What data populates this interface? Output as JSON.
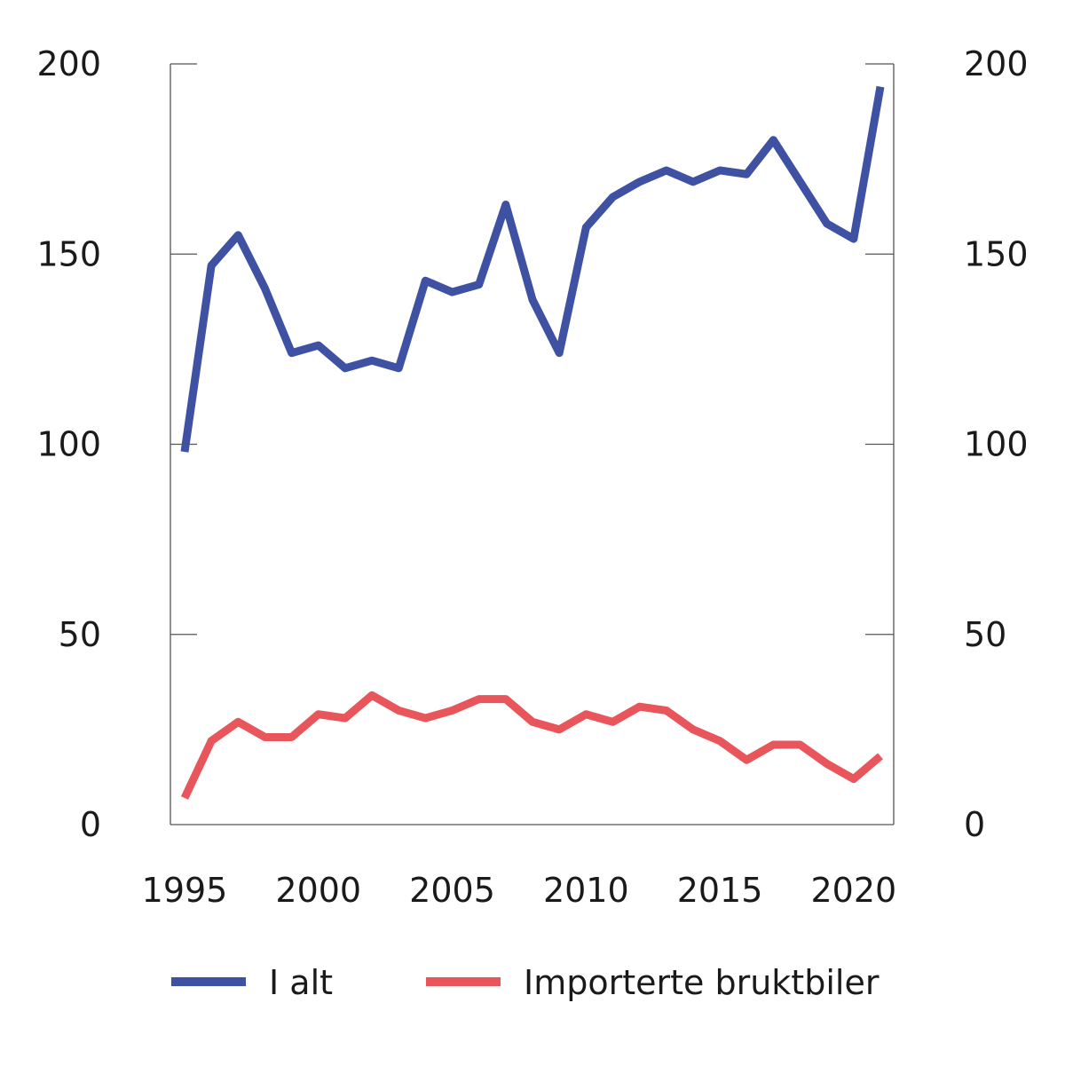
{
  "chart_data": {
    "type": "line",
    "title": "",
    "xlabel": "",
    "ylabel": "",
    "ylim": [
      0,
      200
    ],
    "xlim": [
      1995,
      2021
    ],
    "yticks": [
      0,
      50,
      100,
      150,
      200
    ],
    "xticks": [
      1995,
      2000,
      2005,
      2010,
      2015,
      2020
    ],
    "grid": false,
    "legend_position": "bottom",
    "x": [
      1995,
      1996,
      1997,
      1998,
      1999,
      2000,
      2001,
      2002,
      2003,
      2004,
      2005,
      2006,
      2007,
      2008,
      2009,
      2010,
      2011,
      2012,
      2013,
      2014,
      2015,
      2016,
      2017,
      2018,
      2019,
      2020,
      2021
    ],
    "series": [
      {
        "name": "I alt",
        "color": "#3f51a3",
        "values": [
          98,
          147,
          155,
          141,
          124,
          126,
          120,
          122,
          120,
          143,
          140,
          142,
          163,
          138,
          124,
          157,
          165,
          169,
          172,
          169,
          172,
          171,
          180,
          169,
          158,
          154,
          194
        ]
      },
      {
        "name": "Importerte bruktbiler",
        "color": "#e8555a",
        "values": [
          7,
          22,
          27,
          23,
          23,
          29,
          28,
          34,
          30,
          28,
          30,
          33,
          33,
          27,
          25,
          29,
          27,
          31,
          30,
          25,
          22,
          17,
          21,
          21,
          16,
          12,
          18
        ]
      }
    ]
  }
}
